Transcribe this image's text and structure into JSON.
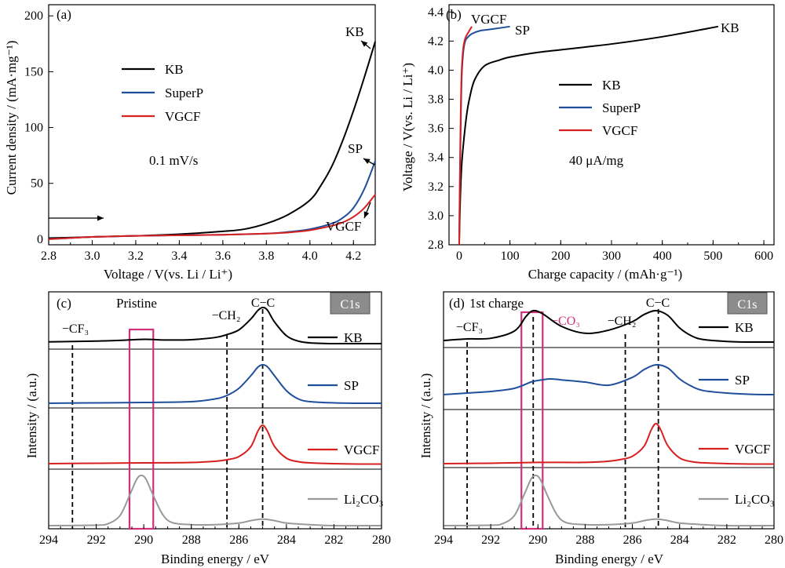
{
  "panels": {
    "a": {
      "label": "(a)",
      "annotation": "0.1 mV/s"
    },
    "b": {
      "label": "(b)",
      "annotation": "40 μA/mg"
    },
    "c": {
      "label": "(c)",
      "sample": "Pristine",
      "badge": "C1s"
    },
    "d": {
      "label": "(d)",
      "sample": "1st charge",
      "badge": "C1s"
    }
  },
  "colors": {
    "KB": "#000000",
    "SuperP": "#1f4e9c",
    "VGCF": "#d62020",
    "Li2CO3": "#999999",
    "highlight": "#d0307a"
  },
  "chart_data": [
    {
      "id": "a",
      "type": "line",
      "xlabel": "Voltage / V(vs. Li / Li⁺)",
      "ylabel": "Current density / (mA·mg⁻¹)",
      "xlim": [
        2.8,
        4.3
      ],
      "ylim": [
        -5,
        210
      ],
      "xticks": [
        "2.8",
        "3.0",
        "3.2",
        "3.4",
        "3.6",
        "3.8",
        "4.0",
        "4.2"
      ],
      "yticks": [
        "0",
        "50",
        "100",
        "150",
        "200"
      ],
      "legend": {
        "position": "upper-left",
        "entries": [
          "KB",
          "SuperP",
          "VGCF"
        ]
      },
      "series": [
        {
          "name": "KB",
          "x": [
            2.8,
            3.0,
            3.2,
            3.4,
            3.6,
            3.7,
            3.8,
            3.9,
            4.0,
            4.05,
            4.1,
            4.15,
            4.2,
            4.25,
            4.3
          ],
          "y": [
            1,
            2,
            3,
            4.5,
            7,
            9,
            14,
            22,
            35,
            48,
            65,
            88,
            115,
            145,
            177
          ]
        },
        {
          "name": "SuperP",
          "x": [
            2.8,
            3.0,
            3.2,
            3.4,
            3.6,
            3.8,
            3.9,
            4.0,
            4.1,
            4.15,
            4.2,
            4.25,
            4.3
          ],
          "y": [
            0,
            2,
            3,
            3.5,
            4,
            5,
            6.5,
            9,
            14,
            19,
            28,
            45,
            70
          ]
        },
        {
          "name": "VGCF",
          "x": [
            2.8,
            3.0,
            3.2,
            3.4,
            3.6,
            3.8,
            3.9,
            4.0,
            4.1,
            4.15,
            4.2,
            4.25,
            4.3
          ],
          "y": [
            0,
            2,
            3,
            3.5,
            4,
            5,
            6,
            8,
            12,
            15,
            20,
            28,
            40
          ]
        }
      ],
      "annotations": [
        {
          "text": "KB",
          "x": 4.26,
          "y": 178
        },
        {
          "text": "SP",
          "x": 4.26,
          "y": 70
        },
        {
          "text": "VGCF",
          "x": 4.23,
          "y": 5
        },
        {
          "text": "→",
          "x": 2.95,
          "y": 13
        }
      ]
    },
    {
      "id": "b",
      "type": "line",
      "xlabel": "Charge capacity / (mAh·g⁻¹)",
      "ylabel": "Voltage / V(vs. Li / Li⁺)",
      "xlim": [
        -20,
        620
      ],
      "ylim": [
        2.8,
        4.45
      ],
      "xticks": [
        "0",
        "100",
        "200",
        "300",
        "400",
        "500",
        "600"
      ],
      "yticks": [
        "2.8",
        "3.0",
        "3.2",
        "3.4",
        "3.6",
        "3.8",
        "4.0",
        "4.2",
        "4.4"
      ],
      "legend": {
        "position": "middle-left",
        "entries": [
          "KB",
          "SuperP",
          "VGCF"
        ]
      },
      "series": [
        {
          "name": "KB",
          "x": [
            0,
            2,
            5,
            10,
            15,
            20,
            30,
            50,
            80,
            100,
            150,
            200,
            300,
            400,
            510
          ],
          "y": [
            2.8,
            3.1,
            3.35,
            3.55,
            3.7,
            3.8,
            3.93,
            4.03,
            4.07,
            4.09,
            4.12,
            4.14,
            4.18,
            4.23,
            4.3
          ]
        },
        {
          "name": "SuperP",
          "x": [
            0,
            1,
            3,
            5,
            8,
            12,
            18,
            25,
            40,
            60,
            100
          ],
          "y": [
            2.8,
            3.1,
            3.6,
            3.95,
            4.12,
            4.2,
            4.23,
            4.25,
            4.27,
            4.28,
            4.3
          ]
        },
        {
          "name": "VGCF",
          "x": [
            0,
            1,
            3,
            5,
            8,
            12,
            18,
            25
          ],
          "y": [
            2.8,
            3.15,
            3.7,
            4.0,
            4.15,
            4.22,
            4.26,
            4.3
          ]
        }
      ],
      "annotations": [
        {
          "text": "VGCF",
          "x": 40,
          "y": 4.38
        },
        {
          "text": "SP",
          "x": 118,
          "y": 4.3
        },
        {
          "text": "KB",
          "x": 540,
          "y": 4.31
        }
      ]
    },
    {
      "id": "c",
      "type": "line",
      "xlabel": "Binding energy / eV",
      "ylabel": "Intensity / (a.u.)",
      "xlim": [
        294,
        280
      ],
      "x_reversed": true,
      "xticks": [
        "294",
        "292",
        "290",
        "288",
        "286",
        "284",
        "282",
        "280"
      ],
      "stacked": true,
      "legend": {
        "position": "right of each trace",
        "entries": [
          "KB",
          "SP",
          "VGCF",
          "Li₂CO₃"
        ]
      },
      "reference_lines": [
        {
          "x": 293,
          "label": "−CF₃"
        },
        {
          "x": 286.5,
          "label": "−CH₂"
        },
        {
          "x": 285,
          "label": "C−C"
        }
      ],
      "highlight_box": {
        "x": [
          290.6,
          289.6
        ]
      },
      "series": [
        {
          "name": "KB",
          "x": [
            294,
            292,
            291,
            290,
            289,
            288,
            287,
            286.5,
            286,
            285.5,
            285.2,
            285,
            284.8,
            284.5,
            284,
            283.5,
            283,
            282,
            281,
            280
          ],
          "y": [
            0.05,
            0.07,
            0.09,
            0.12,
            0.1,
            0.11,
            0.17,
            0.25,
            0.38,
            0.68,
            0.92,
            1.0,
            0.93,
            0.6,
            0.22,
            0.07,
            0.02,
            0.0,
            0.0,
            0.0
          ]
        },
        {
          "name": "SP",
          "x": [
            294,
            292,
            290,
            288,
            287,
            286.5,
            286,
            285.5,
            285.2,
            285,
            284.8,
            284.5,
            284,
            283.5,
            283,
            282,
            281,
            280
          ],
          "y": [
            0.02,
            0.03,
            0.04,
            0.06,
            0.13,
            0.22,
            0.4,
            0.72,
            0.94,
            1.0,
            0.95,
            0.72,
            0.34,
            0.13,
            0.06,
            0.03,
            0.02,
            0.02
          ]
        },
        {
          "name": "VGCF",
          "x": [
            294,
            292,
            290,
            288,
            287,
            286.5,
            286,
            285.5,
            285.2,
            285,
            284.8,
            284.5,
            284,
            283.5,
            283,
            282,
            281,
            280
          ],
          "y": [
            0.02,
            0.03,
            0.04,
            0.05,
            0.08,
            0.12,
            0.2,
            0.45,
            0.85,
            1.0,
            0.85,
            0.46,
            0.16,
            0.07,
            0.04,
            0.02,
            0.01,
            0.01
          ]
        },
        {
          "name": "Li₂CO₃",
          "x": [
            294,
            292,
            291.5,
            291,
            290.6,
            290.3,
            290.1,
            289.9,
            289.6,
            289.2,
            288.8,
            288,
            287,
            286,
            285.5,
            285,
            284.5,
            284,
            283,
            282,
            280
          ],
          "y": [
            0.0,
            0.01,
            0.04,
            0.2,
            0.6,
            0.92,
            1.0,
            0.92,
            0.6,
            0.22,
            0.06,
            0.02,
            0.02,
            0.05,
            0.1,
            0.13,
            0.1,
            0.05,
            0.02,
            0.0,
            0.0
          ]
        }
      ]
    },
    {
      "id": "d",
      "type": "line",
      "xlabel": "Binding energy / eV",
      "ylabel": "Intensity / (a.u.)",
      "xlim": [
        294,
        280
      ],
      "x_reversed": true,
      "xticks": [
        "294",
        "292",
        "290",
        "288",
        "286",
        "284",
        "282",
        "280"
      ],
      "stacked": true,
      "legend": {
        "position": "right of each trace",
        "entries": [
          "KB",
          "SP",
          "VGCF",
          "Li₂CO₃"
        ]
      },
      "reference_lines": [
        {
          "x": 293,
          "label": "−CF₃"
        },
        {
          "x": 290.2,
          "label": "−CO₃"
        },
        {
          "x": 286.3,
          "label": "−CH₂"
        },
        {
          "x": 284.9,
          "label": "C−C"
        }
      ],
      "highlight_box": {
        "x": [
          290.7,
          289.8
        ]
      },
      "series": [
        {
          "name": "KB",
          "x": [
            294,
            293,
            292,
            291,
            290.5,
            290.2,
            289.8,
            289,
            288,
            287,
            286,
            285.5,
            285,
            284.5,
            284,
            283.5,
            283,
            282,
            281,
            280
          ],
          "y": [
            0.05,
            0.1,
            0.12,
            0.35,
            0.82,
            1.0,
            0.9,
            0.5,
            0.28,
            0.38,
            0.65,
            0.88,
            1.0,
            0.85,
            0.45,
            0.2,
            0.08,
            0.02,
            0.0,
            0.0
          ]
        },
        {
          "name": "SP",
          "x": [
            294,
            293,
            292,
            291,
            290.3,
            290,
            289.5,
            289,
            288,
            287,
            286,
            285.5,
            285,
            284.5,
            284,
            283.5,
            283,
            282,
            281,
            280
          ],
          "y": [
            0.05,
            0.1,
            0.15,
            0.25,
            0.45,
            0.5,
            0.55,
            0.52,
            0.45,
            0.35,
            0.6,
            0.85,
            1.0,
            0.9,
            0.55,
            0.32,
            0.18,
            0.1,
            0.06,
            0.05
          ]
        },
        {
          "name": "VGCF",
          "x": [
            294,
            292,
            290,
            288,
            287,
            286.5,
            286,
            285.5,
            285.2,
            285,
            284.8,
            284.5,
            284,
            283.5,
            283,
            282,
            281,
            280
          ],
          "y": [
            0.02,
            0.03,
            0.05,
            0.05,
            0.08,
            0.12,
            0.2,
            0.45,
            0.85,
            1.0,
            0.85,
            0.46,
            0.16,
            0.07,
            0.04,
            0.02,
            0.01,
            0.01
          ]
        },
        {
          "name": "Li₂CO₃",
          "x": [
            294,
            292,
            291.5,
            291,
            290.6,
            290.3,
            290.1,
            289.9,
            289.6,
            289.2,
            288.8,
            288,
            287,
            286,
            285.5,
            285,
            284.5,
            284,
            283,
            282,
            280
          ],
          "y": [
            0.0,
            0.01,
            0.04,
            0.2,
            0.6,
            0.92,
            1.0,
            0.92,
            0.6,
            0.22,
            0.06,
            0.02,
            0.02,
            0.05,
            0.1,
            0.13,
            0.1,
            0.05,
            0.02,
            0.0,
            0.0
          ]
        }
      ]
    }
  ]
}
